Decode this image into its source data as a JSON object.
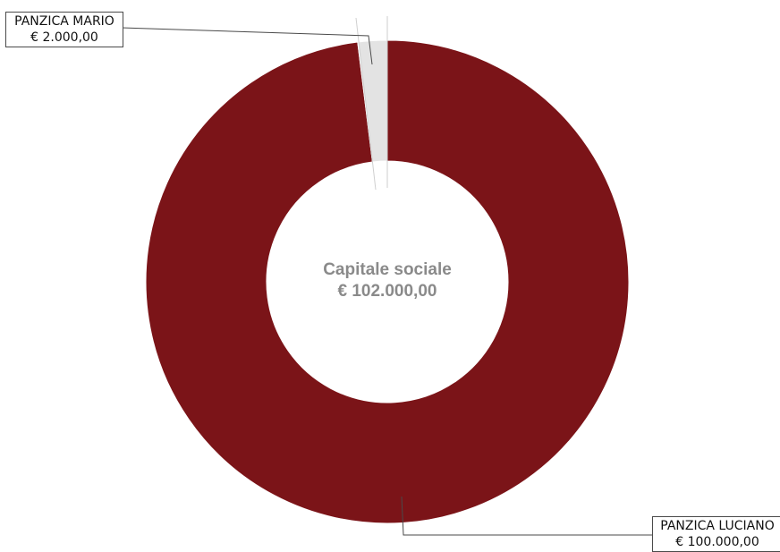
{
  "chart_data": {
    "type": "pie",
    "donut": true,
    "center_label": {
      "title": "Capitale sociale",
      "total": "€ 102.000,00"
    },
    "slices": [
      {
        "label": "PANZICA LUCIANO",
        "value_label": "€ 100.000,00",
        "value": 100000,
        "color": "#7b1418"
      },
      {
        "label": "PANZICA MARIO",
        "value_label": "€ 2.000,00",
        "value": 2000,
        "color": "#e3e3e3"
      }
    ],
    "total": 102000,
    "legend": "none"
  }
}
